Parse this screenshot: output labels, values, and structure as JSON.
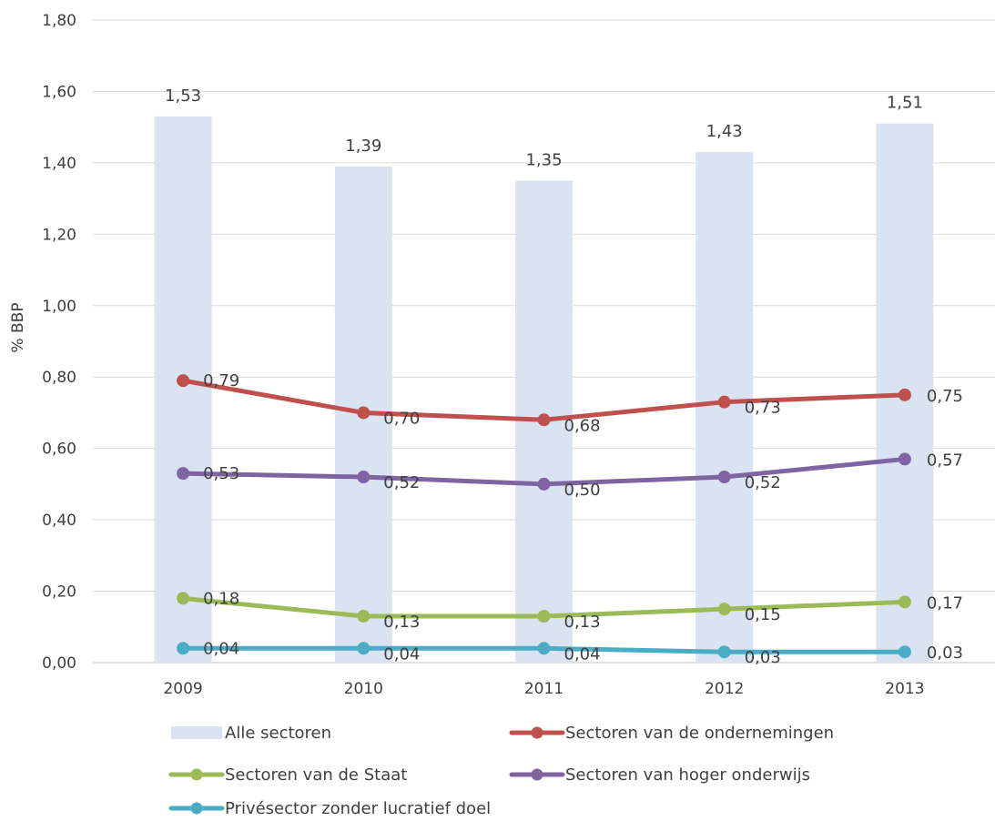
{
  "chart_data": {
    "type": "bar",
    "title": "",
    "xlabel": "",
    "ylabel": "% BBP",
    "ylim": [
      0,
      1.8
    ],
    "yticks": [
      "0,00",
      "0,20",
      "0,40",
      "0,60",
      "0,80",
      "1,00",
      "1,20",
      "1,40",
      "1,60",
      "1,80"
    ],
    "ytick_values": [
      0,
      0.2,
      0.4,
      0.6,
      0.8,
      1.0,
      1.2,
      1.4,
      1.6,
      1.8
    ],
    "categories": [
      "2009",
      "2010",
      "2011",
      "2012",
      "2013"
    ],
    "grid": "horizontal",
    "legend_position": "bottom",
    "bar_series": {
      "name": "Alle sectoren",
      "color": "#dae3f1",
      "values": [
        1.53,
        1.39,
        1.35,
        1.43,
        1.51
      ],
      "labels": [
        "1,53",
        "1,39",
        "1,35",
        "1,43",
        "1,51"
      ]
    },
    "line_series": [
      {
        "name": "Sectoren van de ondernemingen",
        "color": "#c0504d",
        "values": [
          0.79,
          0.7,
          0.68,
          0.73,
          0.75
        ],
        "labels": [
          "0,79",
          "0,70",
          "0,68",
          "0,73",
          "0,75"
        ]
      },
      {
        "name": "Sectoren van hoger onderwijs",
        "color": "#8064a2",
        "values": [
          0.53,
          0.52,
          0.5,
          0.52,
          0.57
        ],
        "labels": [
          "0,53",
          "0,52",
          "0,50",
          "0,52",
          "0,57"
        ]
      },
      {
        "name": "Sectoren van de Staat",
        "color": "#9bbb59",
        "values": [
          0.18,
          0.13,
          0.13,
          0.15,
          0.17
        ],
        "labels": [
          "0,18",
          "0,13",
          "0,13",
          "0,15",
          "0,17"
        ]
      },
      {
        "name": "Privésector zonder lucratief doel",
        "color": "#4bacc6",
        "values": [
          0.04,
          0.04,
          0.04,
          0.03,
          0.03
        ],
        "labels": [
          "0,04",
          "0,04",
          "0,04",
          "0,03",
          "0,03"
        ]
      }
    ],
    "legend_order": [
      "Alle sectoren",
      "Sectoren van de ondernemingen",
      "Sectoren van de Staat",
      "Sectoren van hoger onderwijs",
      "Privésector zonder lucratief doel"
    ]
  }
}
